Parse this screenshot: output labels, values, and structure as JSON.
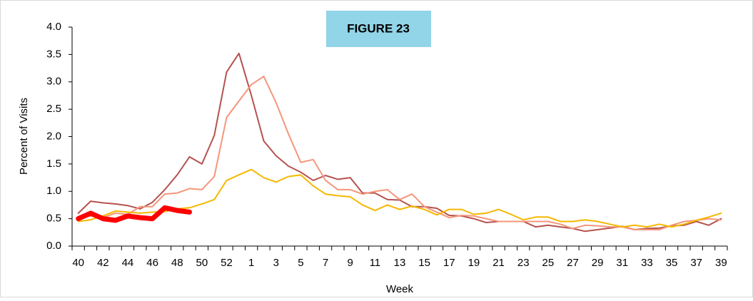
{
  "chart_data": {
    "type": "line",
    "annotation": "FIGURE 23",
    "y_label": "Percent of Visits",
    "x_label": "Week",
    "categories": [
      "40",
      null,
      "42",
      null,
      "44",
      null,
      "46",
      null,
      "48",
      null,
      "50",
      null,
      "52",
      null,
      "1",
      null,
      "3",
      null,
      "5",
      null,
      "7",
      null,
      "9",
      null,
      "11",
      null,
      "13",
      null,
      "15",
      null,
      "17",
      null,
      "19",
      null,
      "21",
      null,
      "23",
      null,
      "25",
      null,
      "27",
      null,
      "29",
      null,
      "31",
      null,
      "33",
      null,
      "35",
      null,
      "37",
      null,
      "39"
    ],
    "ylim": [
      0,
      4
    ],
    "yticks": [
      {
        "value": 0,
        "label": "0.0"
      },
      0.5,
      {
        "value": 1,
        "label": "1.0"
      },
      1.5,
      {
        "value": 2,
        "label": "2.0"
      },
      2.5,
      {
        "value": 3,
        "label": "3.0"
      },
      3.5,
      {
        "value": 4,
        "label": "4.0"
      }
    ],
    "series": [
      {
        "color": "#b5524f",
        "width": 2,
        "values": [
          0.6,
          0.82,
          0.79,
          0.77,
          0.74,
          0.68,
          0.8,
          1.03,
          1.3,
          1.63,
          1.5,
          2.02,
          3.18,
          3.52,
          2.75,
          1.92,
          1.65,
          1.46,
          1.35,
          1.2,
          1.29,
          1.22,
          1.25,
          0.97,
          0.97,
          0.85,
          0.84,
          0.72,
          0.72,
          0.69,
          0.56,
          0.55,
          0.5,
          0.43,
          0.45,
          0.45,
          0.45,
          0.35,
          0.38,
          0.35,
          0.32,
          0.27,
          0.3,
          0.33,
          0.36,
          0.3,
          0.32,
          0.33,
          0.37,
          0.38,
          0.45,
          0.38,
          0.5
        ]
      },
      {
        "color": "#f4967a",
        "width": 2,
        "values": [
          0.5,
          0.55,
          0.52,
          0.6,
          0.58,
          0.72,
          0.72,
          0.95,
          0.97,
          1.05,
          1.03,
          1.27,
          2.35,
          2.65,
          2.95,
          3.1,
          2.62,
          2.05,
          1.53,
          1.58,
          1.2,
          1.03,
          1.03,
          0.95,
          1.0,
          1.03,
          0.85,
          0.95,
          0.72,
          0.62,
          0.52,
          0.56,
          0.55,
          0.5,
          0.45,
          0.45,
          0.45,
          0.45,
          0.45,
          0.4,
          0.32,
          0.38,
          0.37,
          0.35,
          0.35,
          0.3,
          0.3,
          0.3,
          0.38,
          0.45,
          0.47,
          0.5,
          0.48
        ]
      },
      {
        "color": "#f5b800",
        "width": 2,
        "values": [
          0.45,
          0.48,
          0.55,
          0.64,
          0.62,
          0.6,
          0.62,
          0.63,
          0.68,
          0.7,
          0.77,
          0.85,
          1.2,
          1.3,
          1.4,
          1.25,
          1.17,
          1.27,
          1.3,
          1.1,
          0.95,
          0.92,
          0.9,
          0.75,
          0.65,
          0.75,
          0.67,
          0.73,
          0.67,
          0.57,
          0.67,
          0.67,
          0.58,
          0.6,
          0.67,
          0.58,
          0.48,
          0.53,
          0.53,
          0.45,
          0.45,
          0.48,
          0.45,
          0.4,
          0.35,
          0.38,
          0.35,
          0.4,
          0.35,
          0.4,
          0.47,
          0.53,
          0.6
        ]
      },
      {
        "color": "#ff0000",
        "width": 7,
        "values": [
          0.5,
          0.6,
          0.5,
          0.47,
          0.55,
          0.52,
          0.5,
          0.7,
          0.65,
          0.62,
          null,
          null,
          null,
          null,
          null,
          null,
          null,
          null,
          null,
          null,
          null,
          null,
          null,
          null,
          null,
          null,
          null,
          null,
          null,
          null,
          null,
          null,
          null,
          null,
          null,
          null,
          null,
          null,
          null,
          null,
          null,
          null,
          null,
          null,
          null,
          null,
          null,
          null,
          null,
          null,
          null,
          null,
          null
        ]
      }
    ]
  }
}
